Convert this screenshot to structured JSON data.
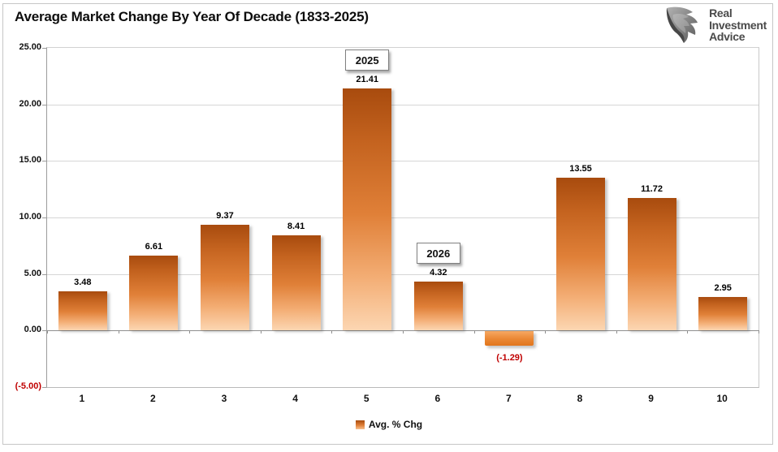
{
  "header": {
    "title": "Average Market Change By Year Of Decade (1833-2025)"
  },
  "logo": {
    "name": "Real Investment Advice",
    "line1": "Real",
    "line2": "Investment",
    "line3": "Advice"
  },
  "chart_data": {
    "type": "bar",
    "title": "Average Market Change By Year Of Decade (1833-2025)",
    "categories": [
      "1",
      "2",
      "3",
      "4",
      "5",
      "6",
      "7",
      "8",
      "9",
      "10"
    ],
    "series": [
      {
        "name": "Avg. % Chg",
        "values": [
          3.48,
          6.61,
          9.37,
          8.41,
          21.41,
          4.32,
          -1.29,
          13.55,
          11.72,
          2.95
        ]
      }
    ],
    "data_labels": [
      "3.48",
      "6.61",
      "9.37",
      "8.41",
      "21.41",
      "4.32",
      "(-1.29)",
      "13.55",
      "11.72",
      "2.95"
    ],
    "annotations": [
      {
        "text": "2025",
        "category": "5"
      },
      {
        "text": "2026",
        "category": "6"
      }
    ],
    "yticks": [
      {
        "value": 25,
        "label": "25.00"
      },
      {
        "value": 20,
        "label": "20.00"
      },
      {
        "value": 15,
        "label": "15.00"
      },
      {
        "value": 10,
        "label": "10.00"
      },
      {
        "value": 5,
        "label": "5.00"
      },
      {
        "value": 0,
        "label": "0.00"
      },
      {
        "value": -5,
        "label": "(-5.00)",
        "negative": true
      }
    ],
    "ylim": [
      -5,
      25
    ],
    "xlabel": "",
    "ylabel": "",
    "grid": true,
    "legend": {
      "position": "bottom",
      "entries": [
        {
          "label": "Avg. % Chg"
        }
      ]
    },
    "colors": {
      "bar_gradient_top": "#A84B0E",
      "bar_gradient_bottom": "#FBD2AE",
      "negative_gradient_top": "#F6A863",
      "negative_gradient_bottom": "#E2751C",
      "negative_text": "#C00000",
      "gridline": "#D6D6D6",
      "axis_line": "#9B9B9B",
      "plot_border": "#C9C9C9"
    }
  }
}
